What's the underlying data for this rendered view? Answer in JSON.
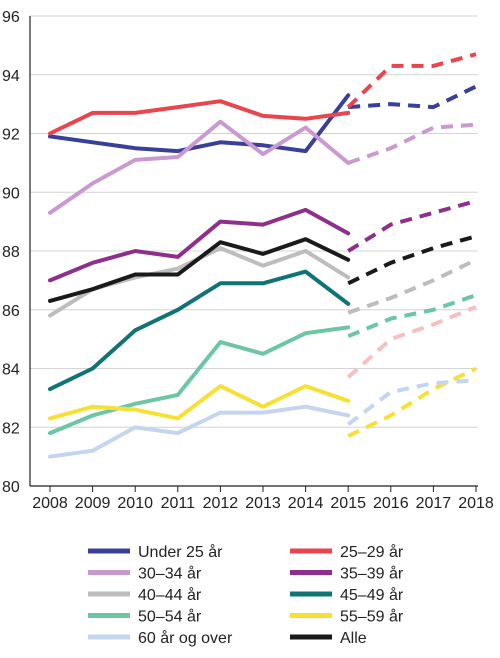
{
  "chart_data": {
    "type": "line",
    "title": "",
    "xlabel": "",
    "ylabel": "",
    "ylim": [
      80,
      96
    ],
    "xlim": [
      2008,
      2018
    ],
    "y_ticks": [
      80,
      82,
      84,
      86,
      88,
      90,
      92,
      94,
      96
    ],
    "x_ticks": [
      2008,
      2009,
      2010,
      2011,
      2012,
      2013,
      2014,
      2015,
      2016,
      2017,
      2018
    ],
    "grid": "horizontal",
    "legend_position": "bottom",
    "solid_years": [
      2008,
      2009,
      2010,
      2011,
      2012,
      2013,
      2014,
      2015
    ],
    "projected_years": [
      2015,
      2016,
      2017,
      2018
    ],
    "series": [
      {
        "name": "Under 25 år",
        "color": "#3a3f98",
        "values": [
          91.9,
          91.7,
          91.5,
          91.4,
          91.7,
          91.6,
          91.4,
          93.3
        ],
        "projection": [
          92.9,
          93.0,
          92.9,
          93.6
        ]
      },
      {
        "name": "25–29 år",
        "color": "#e8454f",
        "values": [
          92.0,
          92.7,
          92.7,
          92.9,
          93.1,
          92.6,
          92.5,
          92.7
        ],
        "projection": [
          92.9,
          94.3,
          94.3,
          94.7
        ]
      },
      {
        "name": "30–34 år",
        "color": "#c999d0",
        "values": [
          89.3,
          90.3,
          91.1,
          91.2,
          92.4,
          91.3,
          92.2,
          91.0
        ],
        "projection": [
          91.0,
          91.5,
          92.2,
          92.3
        ]
      },
      {
        "name": "35–39 år",
        "color": "#8e2f8c",
        "values": [
          87.0,
          87.6,
          88.0,
          87.8,
          89.0,
          88.9,
          89.4,
          88.6
        ],
        "projection": [
          88.0,
          88.9,
          89.3,
          89.7
        ]
      },
      {
        "name": "40–44 år",
        "color": "#bdbdbd",
        "values": [
          85.8,
          86.7,
          87.1,
          87.4,
          88.1,
          87.5,
          88.0,
          87.1
        ],
        "projection": [
          85.9,
          86.4,
          87.0,
          87.7
        ]
      },
      {
        "name": "45–49 år",
        "color": "#0f7474",
        "values": [
          83.3,
          84.0,
          85.3,
          86.0,
          86.9,
          86.9,
          87.3,
          86.2
        ],
        "projection": []
      },
      {
        "name": "50–54 år",
        "color": "#6cc6a4",
        "values": [
          81.8,
          82.4,
          82.8,
          83.1,
          84.9,
          84.5,
          85.2,
          85.4
        ],
        "projection": [
          85.1,
          85.7,
          86.0,
          86.5
        ]
      },
      {
        "name": "55–59 år",
        "color": "#f7e034",
        "values": [
          82.3,
          82.7,
          82.6,
          82.3,
          83.4,
          82.7,
          83.4,
          82.9
        ],
        "projection": [
          81.7,
          82.4,
          83.3,
          84.0
        ]
      },
      {
        "name": "60 år og over",
        "color": "#c6d5ef",
        "values": [
          81.0,
          81.2,
          82.0,
          81.8,
          82.5,
          82.5,
          82.7,
          82.4
        ],
        "projection": [
          82.1,
          83.2,
          83.5,
          83.6
        ]
      },
      {
        "name": "Alle",
        "color": "#1a1a1a",
        "values": [
          86.3,
          86.7,
          87.2,
          87.2,
          88.3,
          87.9,
          88.4,
          87.7
        ],
        "projection": [
          86.9,
          87.6,
          88.1,
          88.5
        ]
      }
    ],
    "extra_projections": [
      {
        "color": "#f6c0c0",
        "values": [
          83.7,
          85.0,
          85.5,
          86.1
        ],
        "years": [
          2015,
          2016,
          2017,
          2018
        ]
      }
    ]
  }
}
